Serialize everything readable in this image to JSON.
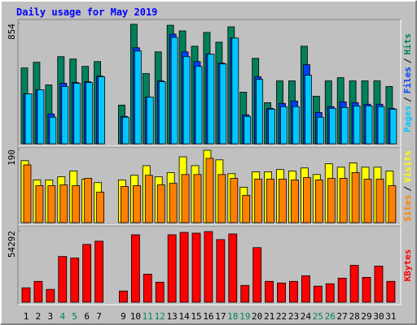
{
  "title": "Daily usage for May 2019",
  "legend_separator": "/",
  "highlighted": [
    3,
    4,
    10,
    11,
    17,
    18,
    24,
    25
  ],
  "highlight_color": "#00805C",
  "chart_data": [
    {
      "type": "bar",
      "ylim": [
        0,
        854
      ],
      "yticks": [
        854
      ],
      "series": [
        {
          "name": "Hits",
          "color": "#00805C",
          "values": [
            539,
            579,
            418,
            619,
            602,
            550,
            584,
            null,
            275,
            849,
            499,
            653,
            842,
            802,
            693,
            791,
            722,
            831,
            367,
            607,
            292,
            447,
            447,
            693,
            338,
            447,
            470,
            447,
            447,
            447,
            407
          ]
        },
        {
          "name": "Files",
          "color": "#0040FF",
          "values": [
            355,
            384,
            212,
            430,
            435,
            441,
            481,
            null,
            195,
            682,
            332,
            447,
            779,
            653,
            584,
            636,
            573,
            751,
            206,
            476,
            252,
            287,
            304,
            562,
            223,
            264,
            298,
            292,
            281,
            281,
            252
          ]
        },
        {
          "name": "Pages",
          "color": "#00C8FF",
          "values": [
            355,
            384,
            189,
            407,
            430,
            435,
            476,
            null,
            189,
            659,
            332,
            441,
            756,
            619,
            550,
            636,
            567,
            751,
            195,
            458,
            246,
            264,
            264,
            487,
            189,
            252,
            258,
            269,
            269,
            264,
            246
          ]
        }
      ]
    },
    {
      "type": "bar",
      "ylim": [
        0,
        190
      ],
      "yticks": [
        190
      ],
      "series": [
        {
          "name": "Visits",
          "color": "#FFFF00",
          "values": [
            161,
            111,
            111,
            119,
            134,
            113,
            104,
            null,
            111,
            123,
            148,
            119,
            130,
            171,
            148,
            188,
            163,
            127,
            92,
            132,
            132,
            138,
            134,
            142,
            125,
            153,
            144,
            155,
            144,
            144,
            134
          ]
        },
        {
          "name": "Sites",
          "color": "#FF8000",
          "values": [
            150,
            96,
            96,
            98,
            96,
            115,
            79,
            null,
            94,
            96,
            123,
            98,
            102,
            125,
            125,
            167,
            125,
            115,
            71,
            113,
            113,
            113,
            111,
            117,
            111,
            115,
            115,
            130,
            113,
            113,
            96
          ]
        }
      ]
    },
    {
      "type": "bar",
      "ylim": [
        0,
        54292
      ],
      "yticks": [
        54292
      ],
      "categories": [
        "1",
        "2",
        "3",
        "4",
        "5",
        "6",
        "7",
        null,
        "9",
        "10",
        "11",
        "12",
        "13",
        "14",
        "15",
        "16",
        "17",
        "18",
        "19",
        "20",
        "21",
        "22",
        "23",
        "24",
        "25",
        "26",
        "27",
        "28",
        "29",
        "30",
        "31"
      ],
      "series": [
        {
          "name": "KBytes",
          "color": "#FF0000",
          "values": [
            10980,
            15860,
            9760,
            34770,
            33550,
            43920,
            46360,
            null,
            8540,
            51240,
            21350,
            15250,
            51240,
            53070,
            52460,
            53680,
            47580,
            51850,
            12810,
            41480,
            15860,
            14640,
            15860,
            20130,
            12200,
            14030,
            18300,
            28060,
            18910,
            27450,
            15860
          ]
        }
      ]
    }
  ]
}
